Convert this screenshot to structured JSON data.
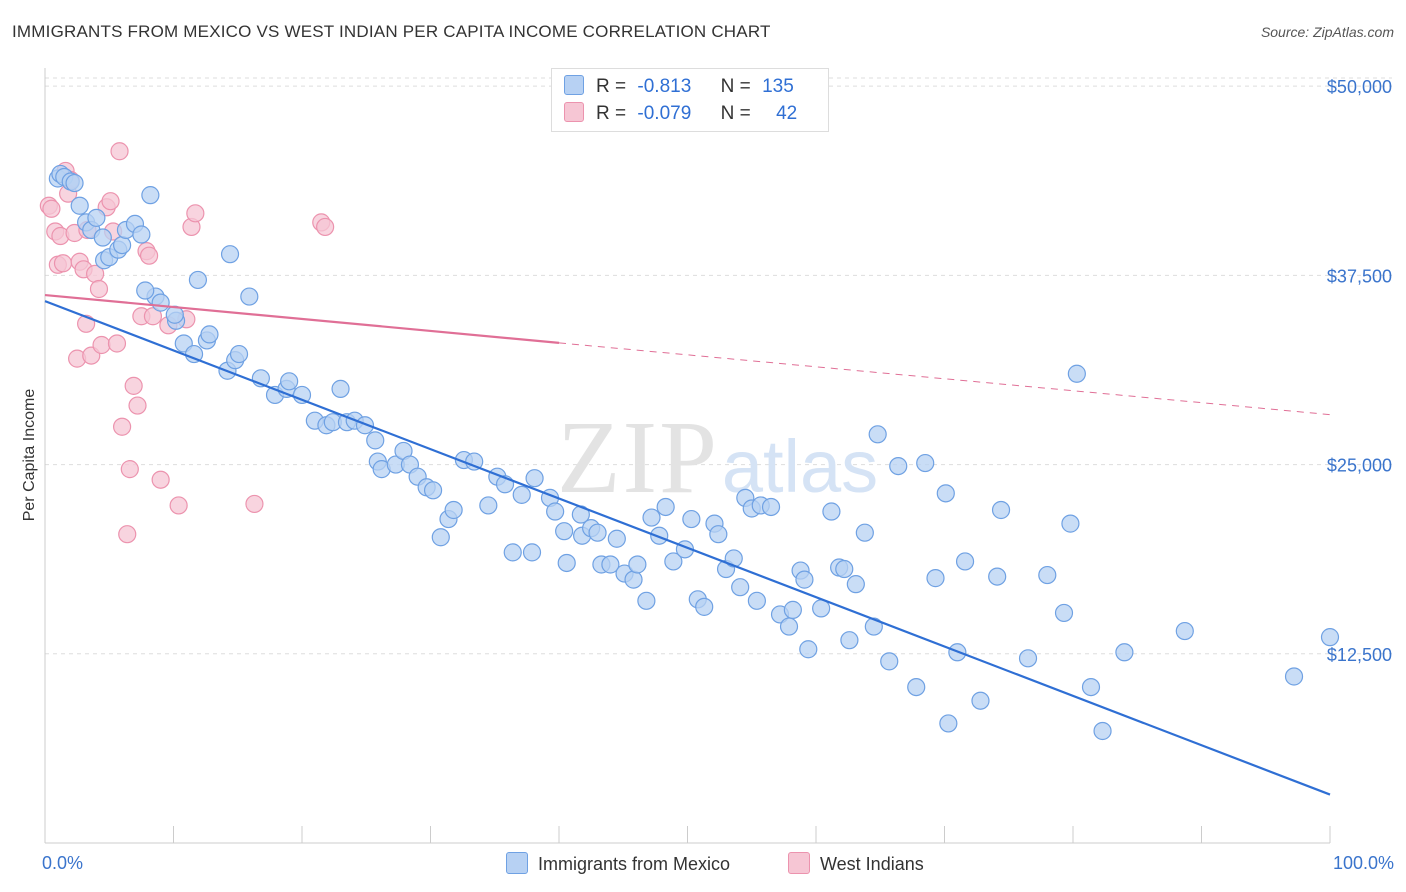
{
  "title": "IMMIGRANTS FROM MEXICO VS WEST INDIAN PER CAPITA INCOME CORRELATION CHART",
  "source": "Source: ZipAtlas.com",
  "watermark": {
    "zip": "ZIP",
    "atlas": "atlas"
  },
  "colors": {
    "blue_fill": "#b7d1f3",
    "blue_stroke": "#6fa1e3",
    "blue_line": "#2f6fd4",
    "pink_fill": "#f6c6d4",
    "pink_stroke": "#ec93ae",
    "pink_line": "#e06f96",
    "axis_text": "#3a74cc",
    "grid": "#dddddd"
  },
  "stats": {
    "rows": [
      {
        "r_label": "R =",
        "r_value": "-0.813",
        "n_label": "N =",
        "n_value": "135"
      },
      {
        "r_label": "R =",
        "r_value": "-0.079",
        "n_label": "N =",
        "n_value": "42"
      }
    ]
  },
  "legend": {
    "items": [
      "Immigrants from Mexico",
      "West Indians"
    ]
  },
  "chart_data": {
    "type": "scatter",
    "title": "IMMIGRANTS FROM MEXICO VS WEST INDIAN PER CAPITA INCOME CORRELATION CHART",
    "xlabel": "",
    "ylabel": "Per Capita Income",
    "x_tick_labels": [
      "0.0%",
      "100.0%"
    ],
    "y_tick_labels": [
      "$12,500",
      "$25,000",
      "$37,500",
      "$50,000"
    ],
    "xlim": [
      0,
      100
    ],
    "ylim": [
      0,
      51200
    ],
    "y_ticks": [
      12500,
      25000,
      37500,
      50000
    ],
    "grid": true,
    "legend_position": "bottom-center",
    "series": [
      {
        "name": "Immigrants from Mexico",
        "r": -0.813,
        "n": 135,
        "trend": {
          "x": [
            0,
            100
          ],
          "y": [
            35800,
            3200
          ],
          "dashed_from": null
        },
        "points": [
          [
            1,
            43900
          ],
          [
            1.2,
            44200
          ],
          [
            1.5,
            44000
          ],
          [
            2,
            43700
          ],
          [
            2.3,
            43600
          ],
          [
            2.7,
            42100
          ],
          [
            3.2,
            41000
          ],
          [
            3.6,
            40500
          ],
          [
            4,
            41300
          ],
          [
            4.5,
            40000
          ],
          [
            4.6,
            38500
          ],
          [
            5,
            38700
          ],
          [
            5.7,
            39200
          ],
          [
            6,
            39500
          ],
          [
            6.3,
            40500
          ],
          [
            7,
            40900
          ],
          [
            7.5,
            40200
          ],
          [
            8.2,
            42800
          ],
          [
            8.6,
            36100
          ],
          [
            9,
            35700
          ],
          [
            10.2,
            34500
          ],
          [
            10.8,
            33000
          ],
          [
            11.6,
            32300
          ],
          [
            11.9,
            37200
          ],
          [
            12.6,
            33200
          ],
          [
            12.8,
            33600
          ],
          [
            14.2,
            31200
          ],
          [
            14.4,
            38900
          ],
          [
            14.8,
            31900
          ],
          [
            15.1,
            32300
          ],
          [
            15.9,
            36100
          ],
          [
            16.8,
            30700
          ],
          [
            17.9,
            29600
          ],
          [
            18.8,
            30000
          ],
          [
            19,
            30500
          ],
          [
            20,
            29600
          ],
          [
            21,
            27900
          ],
          [
            21.9,
            27600
          ],
          [
            22.4,
            27800
          ],
          [
            23,
            30000
          ],
          [
            23.5,
            27800
          ],
          [
            24.1,
            27900
          ],
          [
            24.9,
            27600
          ],
          [
            25.7,
            26600
          ],
          [
            25.9,
            25200
          ],
          [
            26.2,
            24700
          ],
          [
            27.3,
            25000
          ],
          [
            27.9,
            25900
          ],
          [
            28.4,
            25000
          ],
          [
            29,
            24200
          ],
          [
            29.7,
            23500
          ],
          [
            30.2,
            23300
          ],
          [
            30.8,
            20200
          ],
          [
            31.4,
            21400
          ],
          [
            31.8,
            22000
          ],
          [
            32.6,
            25300
          ],
          [
            33.4,
            25200
          ],
          [
            34.5,
            22300
          ],
          [
            35.2,
            24200
          ],
          [
            35.8,
            23700
          ],
          [
            36.4,
            19200
          ],
          [
            37.1,
            23000
          ],
          [
            37.9,
            19200
          ],
          [
            38.1,
            24100
          ],
          [
            39.3,
            22800
          ],
          [
            39.7,
            21900
          ],
          [
            40.4,
            20600
          ],
          [
            40.6,
            18500
          ],
          [
            41.7,
            21700
          ],
          [
            41.8,
            20300
          ],
          [
            42.5,
            20800
          ],
          [
            43,
            20500
          ],
          [
            43.3,
            18400
          ],
          [
            44,
            18400
          ],
          [
            44.5,
            20100
          ],
          [
            45.1,
            17800
          ],
          [
            45.8,
            17400
          ],
          [
            46.1,
            18400
          ],
          [
            46.8,
            16000
          ],
          [
            47.2,
            21500
          ],
          [
            47.8,
            20300
          ],
          [
            48.3,
            22200
          ],
          [
            48.9,
            18600
          ],
          [
            49.8,
            19400
          ],
          [
            50.3,
            21400
          ],
          [
            50.8,
            16100
          ],
          [
            51.3,
            15600
          ],
          [
            52.1,
            21100
          ],
          [
            52.4,
            20400
          ],
          [
            53,
            18100
          ],
          [
            53.6,
            18800
          ],
          [
            54.1,
            16900
          ],
          [
            54.5,
            22800
          ],
          [
            55,
            22100
          ],
          [
            55.4,
            16000
          ],
          [
            55.7,
            22300
          ],
          [
            56.5,
            22200
          ],
          [
            57.2,
            15100
          ],
          [
            57.9,
            14300
          ],
          [
            58.2,
            15400
          ],
          [
            58.8,
            18000
          ],
          [
            59.1,
            17400
          ],
          [
            59.4,
            12800
          ],
          [
            60.4,
            15500
          ],
          [
            61.2,
            21900
          ],
          [
            61.8,
            18200
          ],
          [
            62.2,
            18100
          ],
          [
            62.6,
            13400
          ],
          [
            63.1,
            17100
          ],
          [
            63.8,
            20500
          ],
          [
            64.5,
            14300
          ],
          [
            64.8,
            27000
          ],
          [
            65.7,
            12000
          ],
          [
            66.4,
            24900
          ],
          [
            67.8,
            10300
          ],
          [
            68.5,
            25100
          ],
          [
            69.3,
            17500
          ],
          [
            70.1,
            23100
          ],
          [
            70.3,
            7900
          ],
          [
            71,
            12600
          ],
          [
            71.6,
            18600
          ],
          [
            72.8,
            9400
          ],
          [
            74.1,
            17600
          ],
          [
            74.4,
            22000
          ],
          [
            76.5,
            12200
          ],
          [
            78,
            17700
          ],
          [
            79.3,
            15200
          ],
          [
            79.8,
            21100
          ],
          [
            80.3,
            31000
          ],
          [
            81.4,
            10300
          ],
          [
            82.3,
            7400
          ],
          [
            84,
            12600
          ],
          [
            88.7,
            14000
          ],
          [
            97.2,
            11000
          ],
          [
            100,
            13600
          ],
          [
            7.8,
            36500
          ],
          [
            10.1,
            34900
          ]
        ]
      },
      {
        "name": "West Indians",
        "r": -0.079,
        "n": 42,
        "trend": {
          "x": [
            0,
            100
          ],
          "y": [
            36200,
            28300
          ],
          "dashed_from": 40
        },
        "points": [
          [
            0.3,
            42100
          ],
          [
            0.5,
            41900
          ],
          [
            0.8,
            40400
          ],
          [
            1,
            38200
          ],
          [
            1.2,
            40100
          ],
          [
            1.4,
            38300
          ],
          [
            1.6,
            44400
          ],
          [
            1.8,
            42900
          ],
          [
            2,
            43800
          ],
          [
            2.3,
            40300
          ],
          [
            2.5,
            32000
          ],
          [
            2.7,
            38400
          ],
          [
            3,
            37900
          ],
          [
            3.2,
            34300
          ],
          [
            3.3,
            40500
          ],
          [
            3.6,
            32200
          ],
          [
            3.9,
            37600
          ],
          [
            4.2,
            36600
          ],
          [
            4.4,
            32900
          ],
          [
            4.8,
            42000
          ],
          [
            5.1,
            42400
          ],
          [
            5.3,
            40400
          ],
          [
            5.6,
            33000
          ],
          [
            5.8,
            45700
          ],
          [
            6,
            27500
          ],
          [
            6.4,
            20400
          ],
          [
            6.6,
            24700
          ],
          [
            6.9,
            30200
          ],
          [
            7.2,
            28900
          ],
          [
            7.5,
            34800
          ],
          [
            7.9,
            39100
          ],
          [
            8.1,
            38800
          ],
          [
            8.4,
            34800
          ],
          [
            9,
            24000
          ],
          [
            9.6,
            34200
          ],
          [
            10.4,
            22300
          ],
          [
            11,
            34600
          ],
          [
            11.4,
            40700
          ],
          [
            11.7,
            41600
          ],
          [
            16.3,
            22400
          ],
          [
            21.5,
            41000
          ],
          [
            21.8,
            40700
          ]
        ]
      }
    ]
  }
}
